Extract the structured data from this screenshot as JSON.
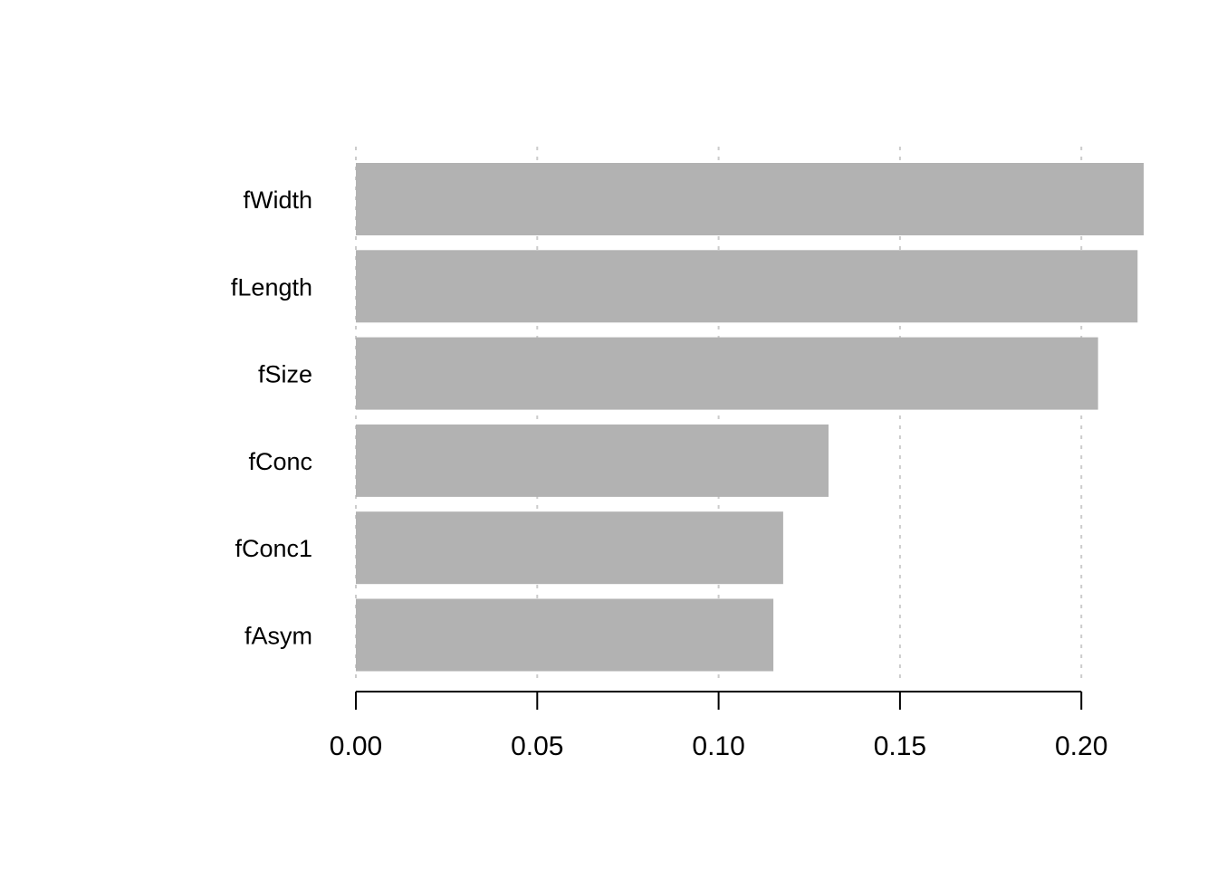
{
  "chart_data": {
    "type": "bar",
    "orientation": "horizontal",
    "title": "",
    "xlabel": "",
    "ylabel": "",
    "categories": [
      "fWidth",
      "fLength",
      "fSize",
      "fConc",
      "fConc1",
      "fAsym"
    ],
    "values": [
      0.2172,
      0.2155,
      0.2046,
      0.1303,
      0.1178,
      0.1151
    ],
    "xlim": [
      0,
      0.2172
    ],
    "x_ticks": [
      0.0,
      0.05,
      0.1,
      0.15,
      0.2
    ],
    "x_tick_labels": [
      "0.00",
      "0.05",
      "0.10",
      "0.15",
      "0.20"
    ],
    "grid": "vertical dotted at x ticks",
    "legend": "none",
    "bar_color": "#b2b2b2",
    "grid_color": "#cccccc",
    "axis_color": "#000000"
  }
}
